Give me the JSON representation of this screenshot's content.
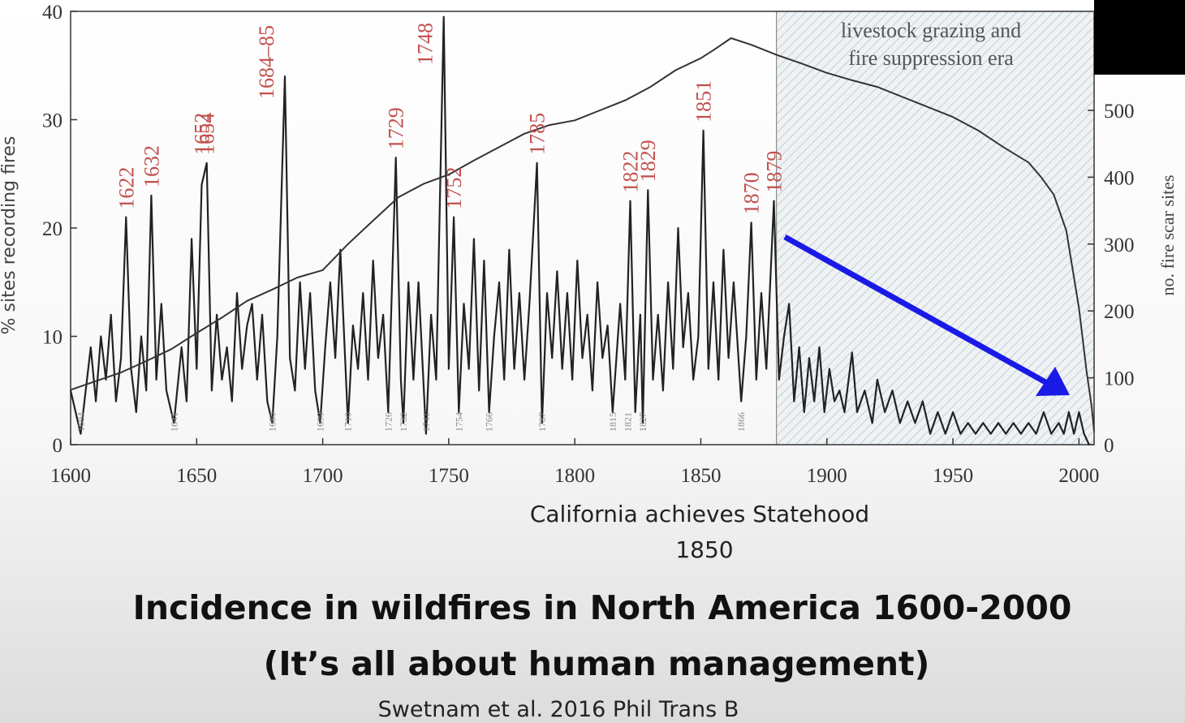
{
  "chart_data": {
    "type": "line",
    "title": "Incidence in wildfires in North America 1600-2000",
    "subtitle": "(It’s all about human management)",
    "source": "Swetnam et al. 2016 Phil Trans B",
    "note": [
      "California achieves Statehood",
      "1850"
    ],
    "ylabel": "% sites recording fires",
    "y2label": "no. fire scar sites",
    "xlim": [
      1600,
      2006
    ],
    "xticks": [
      1600,
      1650,
      1700,
      1750,
      1800,
      1850,
      1900,
      1950,
      2000
    ],
    "ylim": [
      0,
      40
    ],
    "yticks": [
      0,
      10,
      20,
      30,
      40
    ],
    "y2lim": [
      0,
      648
    ],
    "y2ticks": [
      0,
      100,
      200,
      300,
      400,
      500
    ],
    "era": {
      "start": 1880,
      "text": [
        "livestock grazing and",
        "fire suppression era"
      ]
    },
    "series": [
      {
        "color": "#222222",
        "x": [
          1600,
          1602,
          1604,
          1606,
          1608,
          1610,
          1612,
          1614,
          1616,
          1618,
          1620,
          1622,
          1624,
          1626,
          1628,
          1630,
          1632,
          1634,
          1636,
          1638,
          1641,
          1644,
          1646,
          1648,
          1650,
          1652,
          1654,
          1656,
          1658,
          1660,
          1662,
          1664,
          1666,
          1668,
          1670,
          1672,
          1674,
          1676,
          1678,
          1680,
          1682,
          1685,
          1687,
          1689,
          1691,
          1693,
          1695,
          1697,
          1699,
          1701,
          1703,
          1705,
          1707,
          1710,
          1712,
          1714,
          1716,
          1718,
          1720,
          1722,
          1724,
          1726,
          1729,
          1731,
          1732,
          1734,
          1736,
          1738,
          1741,
          1743,
          1745,
          1748,
          1750,
          1752,
          1754,
          1756,
          1758,
          1760,
          1762,
          1764,
          1766,
          1768,
          1770,
          1772,
          1774,
          1776,
          1778,
          1780,
          1782,
          1785,
          1787,
          1789,
          1791,
          1793,
          1795,
          1797,
          1799,
          1801,
          1803,
          1805,
          1807,
          1809,
          1811,
          1813,
          1815,
          1818,
          1820,
          1822,
          1824,
          1826,
          1827,
          1829,
          1831,
          1833,
          1835,
          1837,
          1839,
          1841,
          1843,
          1845,
          1847,
          1849,
          1851,
          1853,
          1855,
          1857,
          1859,
          1861,
          1863,
          1866,
          1868,
          1870,
          1872,
          1874,
          1876,
          1879,
          1881,
          1883,
          1885,
          1887,
          1889,
          1891,
          1893,
          1895,
          1897,
          1899,
          1901,
          1903,
          1905,
          1907,
          1910,
          1912,
          1915,
          1918,
          1920,
          1923,
          1926,
          1929,
          1932,
          1935,
          1938,
          1941,
          1944,
          1947,
          1950,
          1953,
          1956,
          1959,
          1962,
          1965,
          1968,
          1971,
          1974,
          1977,
          1980,
          1983,
          1986,
          1989,
          1992,
          1994,
          1996,
          1998,
          2000,
          2002,
          2004
        ],
        "values": [
          5,
          3,
          1,
          5,
          9,
          4,
          10,
          6,
          12,
          4,
          8,
          21,
          7,
          3,
          10,
          5,
          23,
          6,
          13,
          5,
          2,
          9,
          4,
          19,
          7,
          24,
          26,
          5,
          12,
          6,
          9,
          4,
          14,
          7,
          11,
          13,
          6,
          12,
          4,
          2,
          10,
          34,
          8,
          5,
          15,
          7,
          14,
          5,
          2,
          9,
          15,
          8,
          18,
          2,
          11,
          7,
          14,
          6,
          17,
          8,
          12,
          3,
          26.5,
          6,
          2,
          15,
          6,
          15,
          1,
          12,
          6,
          39.5,
          7,
          21,
          3,
          13,
          7,
          19,
          5,
          17,
          3,
          10,
          15,
          6,
          18,
          7,
          14,
          6,
          13,
          26,
          2,
          14,
          8,
          16,
          7,
          14,
          6,
          17,
          8,
          12,
          5,
          15,
          8,
          11,
          3,
          13,
          6,
          22.5,
          3,
          12,
          2,
          23.5,
          6,
          12,
          5,
          15,
          7,
          20,
          9,
          14,
          6,
          10,
          29,
          7,
          15,
          6,
          18,
          8,
          15,
          4,
          10,
          20.5,
          6,
          14,
          7,
          22.5,
          6,
          10,
          13,
          4,
          9,
          3,
          8,
          4,
          9,
          3,
          7,
          4,
          5,
          3,
          8.5,
          3,
          5,
          2,
          6,
          3,
          5,
          2,
          4,
          2,
          4,
          1,
          3,
          1,
          3,
          1,
          2,
          1,
          2,
          1,
          2,
          1,
          2,
          1,
          2,
          1,
          3,
          1,
          2,
          1,
          3,
          1,
          3,
          1,
          0
        ]
      },
      {
        "color": "#333333",
        "axis": "y2",
        "x": [
          1600,
          1610,
          1620,
          1630,
          1640,
          1650,
          1660,
          1670,
          1680,
          1690,
          1700,
          1710,
          1720,
          1730,
          1740,
          1750,
          1760,
          1770,
          1780,
          1790,
          1800,
          1810,
          1820,
          1830,
          1840,
          1850,
          1855,
          1862,
          1870,
          1880,
          1890,
          1900,
          1910,
          1920,
          1930,
          1940,
          1950,
          1960,
          1970,
          1980,
          1985,
          1990,
          1995,
          2000,
          2003,
          2005,
          2006
        ],
        "values": [
          82,
          95,
          108,
          125,
          143,
          167,
          190,
          215,
          232,
          250,
          261,
          300,
          335,
          370,
          390,
          404,
          425,
          445,
          465,
          478,
          485,
          500,
          515,
          535,
          560,
          578,
          590,
          608,
          598,
          583,
          570,
          556,
          545,
          535,
          520,
          505,
          490,
          470,
          445,
          422,
          400,
          374,
          320,
          204,
          110,
          58,
          20
        ]
      }
    ],
    "peak_labels": [
      {
        "label": "1622",
        "x": 1622
      },
      {
        "label": "1632",
        "x": 1632
      },
      {
        "label": "1652",
        "x": 1652
      },
      {
        "label": "1654",
        "x": 1654
      },
      {
        "label": "1684–85",
        "x": 1685
      },
      {
        "label": "1729",
        "x": 1729
      },
      {
        "label": "1748",
        "x": 1748
      },
      {
        "label": "1752",
        "x": 1752
      },
      {
        "label": "1785",
        "x": 1785
      },
      {
        "label": "1822",
        "x": 1822
      },
      {
        "label": "1829",
        "x": 1829
      },
      {
        "label": "1851",
        "x": 1851
      },
      {
        "label": "1870",
        "x": 1870
      },
      {
        "label": "1879",
        "x": 1879
      }
    ],
    "low_labels": [
      {
        "label": "1604",
        "x": 1604
      },
      {
        "label": "1641",
        "x": 1641
      },
      {
        "label": "1680",
        "x": 1680
      },
      {
        "label": "1699",
        "x": 1699
      },
      {
        "label": "1710",
        "x": 1710
      },
      {
        "label": "1726",
        "x": 1726
      },
      {
        "label": "1732",
        "x": 1732
      },
      {
        "label": "1741",
        "x": 1741
      },
      {
        "label": "1754",
        "x": 1754
      },
      {
        "label": "1766",
        "x": 1766
      },
      {
        "label": "1787",
        "x": 1787
      },
      {
        "label": "1815",
        "x": 1815
      },
      {
        "label": "1821",
        "x": 1821
      },
      {
        "label": "1827",
        "x": 1827
      },
      {
        "label": "1866",
        "x": 1866
      }
    ]
  }
}
